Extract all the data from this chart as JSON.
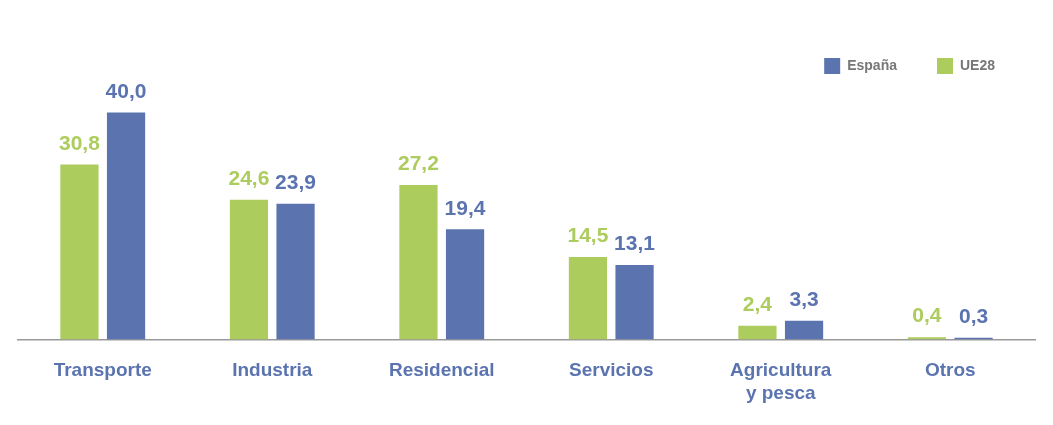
{
  "chart_data": {
    "type": "bar",
    "categories": [
      "Transporte",
      "Industria",
      "Residencial",
      "Servicios",
      "Agricultura y pesca",
      "Otros"
    ],
    "series": [
      {
        "name": "UE28",
        "color": "#adcc5e",
        "values": [
          30.8,
          24.6,
          27.2,
          14.5,
          2.4,
          0.4
        ],
        "value_labels": [
          "30,8",
          "24,6",
          "27,2",
          "14,5",
          "2,4",
          "0,4"
        ]
      },
      {
        "name": "España",
        "color": "#5b74b0",
        "values": [
          40.0,
          23.9,
          19.4,
          13.1,
          3.3,
          0.3
        ],
        "value_labels": [
          "40,0",
          "23,9",
          "19,4",
          "13,1",
          "3,3",
          "0,3"
        ]
      }
    ],
    "legend": "top right"
  }
}
